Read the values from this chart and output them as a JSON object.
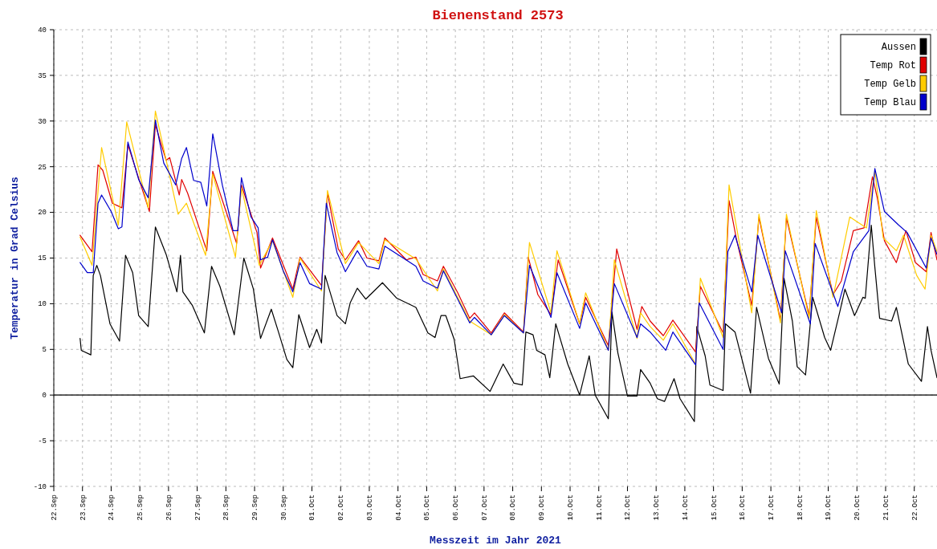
{
  "chart_data": {
    "type": "line",
    "title": "Bienenstand 2573",
    "xlabel": "Messzeit im Jahr 2021",
    "ylabel": "Temperatur in Grad Celsius",
    "xlim": [
      "2021-09-22T00:00",
      "2021-10-22T19:00"
    ],
    "xticks": [
      {
        "value": "2021-09-22",
        "label": "22.Sep"
      },
      {
        "value": "2021-09-23",
        "label": "23.Sep"
      },
      {
        "value": "2021-09-24",
        "label": "24.Sep"
      },
      {
        "value": "2021-09-25",
        "label": "25.Sep"
      },
      {
        "value": "2021-09-26",
        "label": "26.Sep"
      },
      {
        "value": "2021-09-27",
        "label": "27.Sep"
      },
      {
        "value": "2021-09-28",
        "label": "28.Sep"
      },
      {
        "value": "2021-09-29",
        "label": "29.Sep"
      },
      {
        "value": "2021-09-30",
        "label": "30.Sep"
      },
      {
        "value": "2021-10-01",
        "label": "01.Oct"
      },
      {
        "value": "2021-10-02",
        "label": "02.Oct"
      },
      {
        "value": "2021-10-03",
        "label": "03.Oct"
      },
      {
        "value": "2021-10-04",
        "label": "04.Oct"
      },
      {
        "value": "2021-10-05",
        "label": "05.Oct"
      },
      {
        "value": "2021-10-06",
        "label": "06.Oct"
      },
      {
        "value": "2021-10-07",
        "label": "07.Oct"
      },
      {
        "value": "2021-10-08",
        "label": "08.Oct"
      },
      {
        "value": "2021-10-09",
        "label": "09.Oct"
      },
      {
        "value": "2021-10-10",
        "label": "10.Oct"
      },
      {
        "value": "2021-10-11",
        "label": "11.Oct"
      },
      {
        "value": "2021-10-12",
        "label": "12.Oct"
      },
      {
        "value": "2021-10-13",
        "label": "13.Oct"
      },
      {
        "value": "2021-10-14",
        "label": "14.Oct"
      },
      {
        "value": "2021-10-15",
        "label": "15.Oct"
      },
      {
        "value": "2021-10-16",
        "label": "16.Oct"
      },
      {
        "value": "2021-10-17",
        "label": "17.Oct"
      },
      {
        "value": "2021-10-18",
        "label": "18.Oct"
      },
      {
        "value": "2021-10-19",
        "label": "19.Oct"
      },
      {
        "value": "2021-10-20",
        "label": "20.Oct"
      },
      {
        "value": "2021-10-21",
        "label": "21.Oct"
      },
      {
        "value": "2021-10-22",
        "label": "22.Oct"
      }
    ],
    "ylim": [
      -10,
      40
    ],
    "yticks": [
      -10,
      -5,
      0,
      5,
      10,
      15,
      20,
      25,
      30,
      35,
      40
    ],
    "grid": true,
    "legend": "top right",
    "line_style": "solid",
    "marker": "none",
    "ref_lines": [
      {
        "axis": "y",
        "value": 0,
        "color": "#000000"
      }
    ],
    "series": [
      {
        "name": "Aussen",
        "color": "#000000",
        "x": [
          "2021-09-22T22:00",
          "2021-09-22T23:00",
          "2021-09-23T07:00",
          "2021-09-23T09:00",
          "2021-09-23T12:00",
          "2021-09-23T15:00",
          "2021-09-23T23:00",
          "2021-09-24T07:00",
          "2021-09-24T12:00",
          "2021-09-24T18:00",
          "2021-09-24T23:00",
          "2021-09-25T07:00",
          "2021-09-25T13:00",
          "2021-09-25T22:00",
          "2021-09-26T07:00",
          "2021-09-26T10:00",
          "2021-09-26T12:00",
          "2021-09-26T20:00",
          "2021-09-27T06:00",
          "2021-09-27T12:00",
          "2021-09-27T19:00",
          "2021-09-28T07:00",
          "2021-09-28T15:00",
          "2021-09-28T23:00",
          "2021-09-29T05:00",
          "2021-09-29T14:00",
          "2021-09-29T20:00",
          "2021-09-30T03:00",
          "2021-09-30T08:00",
          "2021-09-30T13:00",
          "2021-09-30T22:00",
          "2021-10-01T04:00",
          "2021-10-01T08:00",
          "2021-10-01T11:00",
          "2021-10-01T21:00",
          "2021-10-02T04:00",
          "2021-10-02T08:00",
          "2021-10-02T14:00",
          "2021-10-02T21:00",
          "2021-10-03T11:00",
          "2021-10-03T23:00",
          "2021-10-04T15:00",
          "2021-10-05T01:00",
          "2021-10-05T07:00",
          "2021-10-05T12:00",
          "2021-10-05T16:00",
          "2021-10-05T23:00",
          "2021-10-06T04:00",
          "2021-10-06T15:00",
          "2021-10-07T05:00",
          "2021-10-07T16:00",
          "2021-10-08T01:00",
          "2021-10-08T08:00",
          "2021-10-08T11:00",
          "2021-10-08T17:00",
          "2021-10-08T20:00",
          "2021-10-09T03:00",
          "2021-10-09T07:00",
          "2021-10-09T12:00",
          "2021-10-09T22:00",
          "2021-10-10T08:00",
          "2021-10-10T16:00",
          "2021-10-10T21:00",
          "2021-10-11T08:00",
          "2021-10-11T11:00",
          "2021-10-11T16:00",
          "2021-10-12T00:00",
          "2021-10-12T08:00",
          "2021-10-12T11:00",
          "2021-10-12T19:00",
          "2021-10-13T01:00",
          "2021-10-13T07:00",
          "2021-10-13T15:00",
          "2021-10-13T20:00",
          "2021-10-14T08:00",
          "2021-10-14T10:00",
          "2021-10-14T17:00",
          "2021-10-14T21:00",
          "2021-10-15T08:00",
          "2021-10-15T10:00",
          "2021-10-15T18:00",
          "2021-10-16T07:00",
          "2021-10-16T12:00",
          "2021-10-16T22:00",
          "2021-10-17T07:00",
          "2021-10-17T11:00",
          "2021-10-17T18:00",
          "2021-10-17T22:00",
          "2021-10-18T05:00",
          "2021-10-18T11:00",
          "2021-10-18T21:00",
          "2021-10-19T02:00",
          "2021-10-19T10:00",
          "2021-10-19T14:00",
          "2021-10-19T22:00",
          "2021-10-20T05:00",
          "2021-10-20T07:00",
          "2021-10-20T12:00",
          "2021-10-20T15:00",
          "2021-10-20T19:00",
          "2021-10-21T05:00",
          "2021-10-21T09:00",
          "2021-10-21T19:00",
          "2021-10-22T06:00",
          "2021-10-22T11:00",
          "2021-10-22T14:00",
          "2021-10-22T19:00"
        ],
        "values": [
          6.2,
          4.9,
          4.4,
          13.1,
          14.2,
          13.1,
          7.8,
          5.9,
          15.3,
          13.4,
          8.7,
          7.5,
          18.4,
          15.4,
          11.3,
          15.3,
          11.3,
          9.8,
          6.8,
          14.1,
          11.9,
          6.6,
          15.0,
          11.6,
          6.2,
          9.4,
          6.9,
          3.9,
          3.0,
          8.8,
          5.2,
          7.2,
          5.7,
          13.1,
          8.7,
          7.8,
          10.1,
          11.7,
          10.5,
          12.3,
          10.6,
          9.6,
          6.8,
          6.3,
          8.7,
          8.7,
          6.1,
          1.8,
          2.1,
          0.4,
          3.4,
          1.3,
          1.1,
          6.9,
          6.6,
          4.9,
          4.4,
          1.9,
          7.8,
          3.4,
          0.0,
          4.3,
          0.0,
          -2.6,
          9.1,
          4.6,
          -0.1,
          -0.1,
          2.8,
          1.3,
          -0.4,
          -0.7,
          1.8,
          -0.4,
          -2.9,
          7.5,
          4.3,
          1.1,
          0.5,
          7.8,
          6.9,
          0.2,
          9.6,
          4.0,
          1.2,
          12.8,
          8.1,
          3.1,
          2.2,
          10.7,
          6.3,
          4.9,
          9.3,
          11.6,
          8.7,
          10.7,
          10.6,
          18.6,
          14.0,
          8.4,
          8.1,
          9.6,
          3.4,
          1.5,
          7.5,
          4.9,
          1.9
        ]
      },
      {
        "name": "Temp Rot",
        "color": "#e00000",
        "x": [
          "2021-09-22T22:00",
          "2021-09-23T08:00",
          "2021-09-23T13:00",
          "2021-09-23T17:00",
          "2021-09-24T01:00",
          "2021-09-24T09:00",
          "2021-09-24T14:00",
          "2021-09-25T08:00",
          "2021-09-25T13:00",
          "2021-09-25T22:00",
          "2021-09-26T01:00",
          "2021-09-26T09:00",
          "2021-09-26T11:00",
          "2021-09-26T16:00",
          "2021-09-27T08:00",
          "2021-09-27T13:00",
          "2021-09-28T09:00",
          "2021-09-28T13:00",
          "2021-09-29T02:00",
          "2021-09-29T05:00",
          "2021-09-29T15:00",
          "2021-09-30T08:00",
          "2021-09-30T14:00",
          "2021-10-01T08:00",
          "2021-10-01T13:00",
          "2021-10-01T22:00",
          "2021-10-02T04:00",
          "2021-10-02T15:00",
          "2021-10-02T22:00",
          "2021-10-03T08:00",
          "2021-10-03T13:00",
          "2021-10-04T07:00",
          "2021-10-04T15:00",
          "2021-10-04T21:00",
          "2021-10-05T09:00",
          "2021-10-05T14:00",
          "2021-10-06T02:00",
          "2021-10-06T12:00",
          "2021-10-06T16:00",
          "2021-10-07T06:00",
          "2021-10-07T17:00",
          "2021-10-08T09:00",
          "2021-10-08T13:00",
          "2021-10-08T21:00",
          "2021-10-09T08:00",
          "2021-10-09T14:00",
          "2021-10-10T08:00",
          "2021-10-10T13:00",
          "2021-10-11T08:00",
          "2021-10-11T15:00",
          "2021-10-12T08:00",
          "2021-10-12T12:00",
          "2021-10-12T19:00",
          "2021-10-13T06:00",
          "2021-10-13T14:00",
          "2021-10-14T09:00",
          "2021-10-14T13:00",
          "2021-10-15T08:00",
          "2021-10-15T13:00",
          "2021-10-15T19:00",
          "2021-10-16T08:00",
          "2021-10-16T14:00",
          "2021-10-17T08:00",
          "2021-10-17T13:00",
          "2021-10-18T08:00",
          "2021-10-18T14:00",
          "2021-10-19T04:00",
          "2021-10-19T11:00",
          "2021-10-19T21:00",
          "2021-10-20T06:00",
          "2021-10-20T13:00",
          "2021-10-20T17:00",
          "2021-10-20T23:00",
          "2021-10-21T09:00",
          "2021-10-21T17:00",
          "2021-10-22T01:00",
          "2021-10-22T10:00",
          "2021-10-22T14:00",
          "2021-10-22T19:00"
        ],
        "values": [
          17.5,
          15.7,
          25.2,
          24.6,
          21.0,
          20.5,
          27.4,
          20.1,
          29.6,
          25.7,
          26.0,
          21.9,
          23.6,
          22.1,
          15.8,
          24.5,
          16.6,
          23.0,
          17.8,
          13.9,
          17.2,
          11.6,
          15.1,
          12.0,
          22.1,
          16.0,
          14.8,
          16.9,
          15.0,
          14.7,
          17.2,
          14.8,
          15.1,
          13.2,
          12.5,
          14.1,
          11.2,
          8.4,
          9.0,
          6.8,
          9.0,
          6.9,
          15.1,
          11.0,
          8.8,
          14.8,
          7.8,
          10.7,
          5.4,
          16.0,
          7.2,
          9.7,
          8.1,
          6.5,
          8.2,
          4.7,
          11.9,
          6.8,
          21.3,
          17.2,
          9.8,
          19.5,
          8.2,
          19.4,
          8.7,
          19.5,
          11.0,
          12.5,
          18.0,
          18.3,
          23.9,
          21.6,
          16.9,
          14.5,
          18.0,
          14.5,
          13.5,
          17.8,
          14.8
        ]
      },
      {
        "name": "Temp Gelb",
        "color": "#ffcc00",
        "x": [
          "2021-09-22T22:00",
          "2021-09-23T08:00",
          "2021-09-23T16:00",
          "2021-09-24T06:00",
          "2021-09-24T13:00",
          "2021-09-25T07:00",
          "2021-09-25T13:00",
          "2021-09-26T08:00",
          "2021-09-26T15:00",
          "2021-09-27T07:00",
          "2021-09-27T13:00",
          "2021-09-28T08:00",
          "2021-09-28T13:00",
          "2021-09-29T04:00",
          "2021-09-29T15:00",
          "2021-09-30T08:00",
          "2021-09-30T14:00",
          "2021-10-01T08:00",
          "2021-10-01T13:00",
          "2021-10-02T04:00",
          "2021-10-02T15:00",
          "2021-10-03T08:00",
          "2021-10-03T13:00",
          "2021-10-04T15:00",
          "2021-10-05T09:00",
          "2021-10-05T14:00",
          "2021-10-06T12:00",
          "2021-10-07T06:00",
          "2021-10-07T17:00",
          "2021-10-08T09:00",
          "2021-10-08T14:00",
          "2021-10-09T08:00",
          "2021-10-09T13:00",
          "2021-10-10T08:00",
          "2021-10-10T13:00",
          "2021-10-11T08:00",
          "2021-10-11T13:00",
          "2021-10-12T08:00",
          "2021-10-12T11:00",
          "2021-10-12T19:00",
          "2021-10-13T06:00",
          "2021-10-13T14:00",
          "2021-10-14T09:00",
          "2021-10-14T13:00",
          "2021-10-15T08:00",
          "2021-10-15T13:00",
          "2021-10-16T08:00",
          "2021-10-16T14:00",
          "2021-10-17T08:00",
          "2021-10-17T13:00",
          "2021-10-18T08:00",
          "2021-10-18T14:00",
          "2021-10-19T04:00",
          "2021-10-19T18:00",
          "2021-10-20T08:00",
          "2021-10-20T15:00",
          "2021-10-20T22:00",
          "2021-10-21T09:00",
          "2021-10-21T15:00",
          "2021-10-22T02:00",
          "2021-10-22T09:00",
          "2021-10-22T14:00",
          "2021-10-22T19:00"
        ],
        "values": [
          17.3,
          14.2,
          27.1,
          18.6,
          29.9,
          20.5,
          31.1,
          19.8,
          21.0,
          15.3,
          24.2,
          15.1,
          22.7,
          14.2,
          16.9,
          10.7,
          15.0,
          11.4,
          22.4,
          14.4,
          16.7,
          14.4,
          17.0,
          14.9,
          11.4,
          13.8,
          8.1,
          6.6,
          8.8,
          6.8,
          16.7,
          9.0,
          15.8,
          7.8,
          11.2,
          4.9,
          14.8,
          6.2,
          9.0,
          7.5,
          6.0,
          7.8,
          3.4,
          12.8,
          6.3,
          23.0,
          9.0,
          19.8,
          7.9,
          19.8,
          8.4,
          20.2,
          10.7,
          19.5,
          18.3,
          24.5,
          17.2,
          15.8,
          17.5,
          13.1,
          11.6,
          17.5,
          15.7
        ]
      },
      {
        "name": "Temp Blau",
        "color": "#0000cc",
        "x": [
          "2021-09-22T22:00",
          "2021-09-23T04:00",
          "2021-09-23T09:00",
          "2021-09-23T13:00",
          "2021-09-23T16:00",
          "2021-09-24T00:00",
          "2021-09-24T06:00",
          "2021-09-24T09:00",
          "2021-09-24T14:00",
          "2021-09-24T23:00",
          "2021-09-25T07:00",
          "2021-09-25T13:00",
          "2021-09-25T20:00",
          "2021-09-26T06:00",
          "2021-09-26T11:00",
          "2021-09-26T15:00",
          "2021-09-26T21:00",
          "2021-09-27T03:00",
          "2021-09-27T08:00",
          "2021-09-27T13:00",
          "2021-09-27T21:00",
          "2021-09-28T06:00",
          "2021-09-28T10:00",
          "2021-09-28T13:00",
          "2021-09-28T21:00",
          "2021-09-29T03:00",
          "2021-09-29T05:00",
          "2021-09-29T11:00",
          "2021-09-29T15:00",
          "2021-09-30T00:00",
          "2021-09-30T08:00",
          "2021-09-30T14:00",
          "2021-09-30T22:00",
          "2021-10-01T08:00",
          "2021-10-01T12:00",
          "2021-10-01T21:00",
          "2021-10-02T04:00",
          "2021-10-02T14:00",
          "2021-10-02T22:00",
          "2021-10-03T08:00",
          "2021-10-03T13:00",
          "2021-10-04T15:00",
          "2021-10-04T21:00",
          "2021-10-05T09:00",
          "2021-10-05T14:00",
          "2021-10-06T12:00",
          "2021-10-06T16:00",
          "2021-10-07T06:00",
          "2021-10-07T17:00",
          "2021-10-08T09:00",
          "2021-10-08T14:00",
          "2021-10-09T08:00",
          "2021-10-09T13:00",
          "2021-10-10T08:00",
          "2021-10-10T13:00",
          "2021-10-11T08:00",
          "2021-10-11T13:00",
          "2021-10-12T08:00",
          "2021-10-12T11:00",
          "2021-10-12T19:00",
          "2021-10-13T08:00",
          "2021-10-13T14:00",
          "2021-10-14T09:00",
          "2021-10-14T12:00",
          "2021-10-15T08:00",
          "2021-10-15T12:00",
          "2021-10-15T18:00",
          "2021-10-16T08:00",
          "2021-10-16T13:00",
          "2021-10-17T09:00",
          "2021-10-17T12:00",
          "2021-10-18T09:00",
          "2021-10-18T13:00",
          "2021-10-19T08:00",
          "2021-10-19T21:00",
          "2021-10-20T10:00",
          "2021-10-20T15:00",
          "2021-10-20T23:00",
          "2021-10-21T11:00",
          "2021-10-21T18:00",
          "2021-10-22T10:00",
          "2021-10-22T14:00",
          "2021-10-22T19:00"
        ],
        "values": [
          14.5,
          13.4,
          13.4,
          21.0,
          21.9,
          20.1,
          18.2,
          18.4,
          27.7,
          23.6,
          21.6,
          30.1,
          25.4,
          23.0,
          25.9,
          27.1,
          23.5,
          23.3,
          20.7,
          28.6,
          23.0,
          18.0,
          18.0,
          23.8,
          19.5,
          18.3,
          14.8,
          15.1,
          17.0,
          13.6,
          11.3,
          14.5,
          12.2,
          11.6,
          21.0,
          15.6,
          13.5,
          15.8,
          14.1,
          13.8,
          16.3,
          14.1,
          12.5,
          11.7,
          13.6,
          7.9,
          8.5,
          6.6,
          8.7,
          6.8,
          14.2,
          8.5,
          13.4,
          7.3,
          10.1,
          4.9,
          12.2,
          6.3,
          7.8,
          6.9,
          4.9,
          6.9,
          3.3,
          10.1,
          5.0,
          15.7,
          17.5,
          11.3,
          17.5,
          9.0,
          15.8,
          7.8,
          16.6,
          9.7,
          15.7,
          18.0,
          24.8,
          20.1,
          18.6,
          17.8,
          13.9,
          17.2,
          15.4
        ]
      }
    ]
  }
}
